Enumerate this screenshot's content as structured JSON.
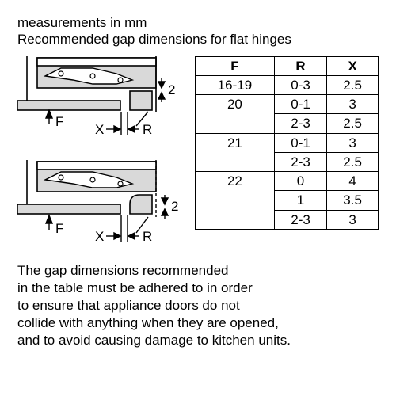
{
  "header": {
    "line1": "measurements in mm",
    "line2": "Recommended gap dimensions for flat hinges"
  },
  "diagram": {
    "fill_light": "#d9d9d9",
    "fill_mid": "#bfbfbf",
    "stroke": "#000000",
    "stroke_width": 1.6,
    "labels": {
      "F": "F",
      "X": "X",
      "R": "R",
      "two": "2"
    },
    "label_fontsize": 17
  },
  "table": {
    "columns": [
      "F",
      "R",
      "X"
    ],
    "rows": [
      {
        "F": "16-19",
        "R": "0-3",
        "X": "2.5",
        "bottom": true,
        "showF": true
      },
      {
        "F": "20",
        "R": "0-1",
        "X": "3",
        "bottom": false,
        "showF": true
      },
      {
        "F": "",
        "R": "2-3",
        "X": "2.5",
        "bottom": true,
        "showF": false
      },
      {
        "F": "21",
        "R": "0-1",
        "X": "3",
        "bottom": false,
        "showF": true
      },
      {
        "F": "",
        "R": "2-3",
        "X": "2.5",
        "bottom": true,
        "showF": false
      },
      {
        "F": "22",
        "R": "0",
        "X": "4",
        "bottom": false,
        "showF": true
      },
      {
        "F": "",
        "R": "1",
        "X": "3.5",
        "bottom": false,
        "showF": false
      },
      {
        "F": "",
        "R": "2-3",
        "X": "3",
        "bottom": true,
        "showF": false
      }
    ],
    "border_color": "#000000",
    "border_width": 1.5
  },
  "footer": {
    "text": "The gap dimensions recommended\nin the table must be adhered to in order\nto ensure that appliance doors do not\ncollide with anything when they are opened,\nand to avoid causing damage to kitchen units."
  }
}
